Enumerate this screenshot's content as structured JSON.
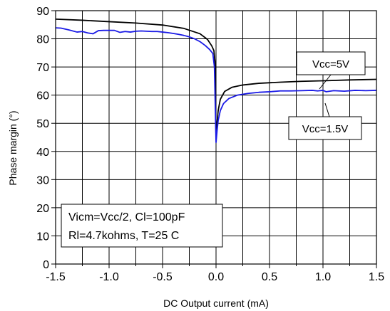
{
  "chart_data": {
    "type": "line",
    "xlabel": "DC Output current (mA)",
    "ylabel": "Phase margin (°)",
    "xlim": [
      -1.5,
      1.5
    ],
    "ylim": [
      0,
      90
    ],
    "x_ticks": [
      "-1.5",
      "-1.0",
      "-0.5",
      "0.0",
      "0.5",
      "1.0",
      "1.5"
    ],
    "y_ticks": [
      "0",
      "10",
      "20",
      "30",
      "40",
      "50",
      "60",
      "70",
      "80",
      "90"
    ],
    "grid": true,
    "series": [
      {
        "name": "Vcc=5V",
        "color": "#000000",
        "x": [
          -1.5,
          -1.25,
          -1.0,
          -0.75,
          -0.5,
          -0.3,
          -0.15,
          -0.08,
          -0.04,
          -0.02,
          -0.01,
          0.0,
          0.01,
          0.02,
          0.04,
          0.08,
          0.15,
          0.25,
          0.4,
          0.6,
          0.8,
          1.0,
          1.25,
          1.5
        ],
        "values": [
          87,
          86.6,
          86.1,
          85.6,
          84.9,
          83.7,
          81.8,
          79.8,
          77.5,
          75.8,
          72,
          44.5,
          50.5,
          54.5,
          58.5,
          61.3,
          62.8,
          63.6,
          64.2,
          64.6,
          64.9,
          65.1,
          65.4,
          65.6
        ]
      },
      {
        "name": "Vcc=1.5V",
        "color": "#1a1ae6",
        "x": [
          -1.5,
          -1.45,
          -1.38,
          -1.3,
          -1.25,
          -1.2,
          -1.15,
          -1.1,
          -1.05,
          -1.0,
          -0.95,
          -0.9,
          -0.85,
          -0.8,
          -0.75,
          -0.7,
          -0.65,
          -0.6,
          -0.55,
          -0.5,
          -0.45,
          -0.4,
          -0.35,
          -0.3,
          -0.25,
          -0.2,
          -0.15,
          -0.1,
          -0.06,
          -0.03,
          -0.015,
          0.0,
          0.01,
          0.02,
          0.04,
          0.07,
          0.12,
          0.2,
          0.3,
          0.4,
          0.5,
          0.6,
          0.7,
          0.8,
          0.9,
          0.95,
          1.0,
          1.03,
          1.1,
          1.2,
          1.3,
          1.4,
          1.5
        ],
        "values": [
          83.9,
          83.8,
          83.2,
          82.4,
          82.6,
          82.1,
          81.8,
          82.9,
          83,
          83,
          83,
          82.3,
          82.6,
          82.4,
          82.7,
          82.8,
          82.7,
          82.6,
          82.6,
          82.4,
          82.2,
          81.9,
          81.6,
          81.2,
          80.7,
          80,
          79,
          77.6,
          76.2,
          74.8,
          70,
          43.2,
          47.5,
          51,
          54.5,
          57,
          58.8,
          60,
          60.6,
          61,
          61.2,
          61.5,
          61.5,
          61.6,
          61.7,
          61.5,
          61.7,
          61.2,
          61.6,
          61.4,
          61.7,
          61.6,
          61.7
        ]
      }
    ],
    "annotations": [
      "Vcc=5V",
      "Vcc=1.5V"
    ],
    "note_lines": [
      "Vicm=Vcc/2, Cl=100pF",
      "Rl=4.7kohms, T=25  C"
    ]
  }
}
